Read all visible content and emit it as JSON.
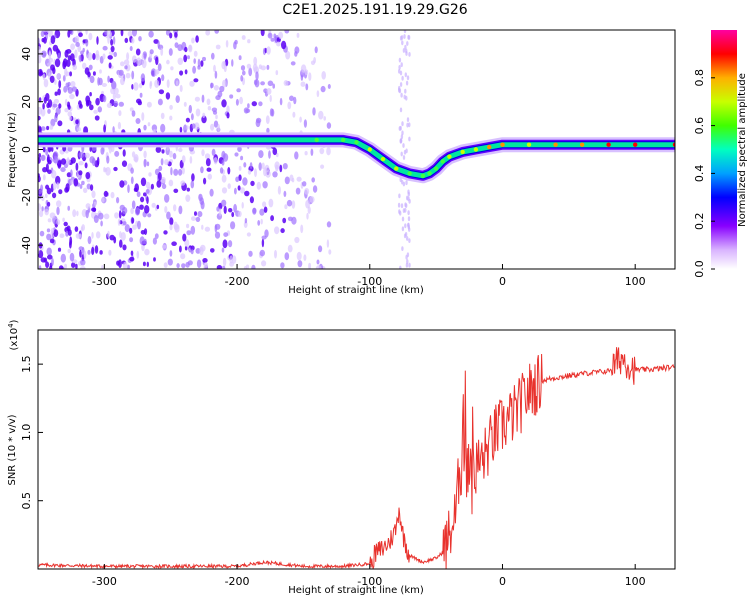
{
  "title": "C2E1.2025.191.19.29.G26",
  "colors": {
    "snr_line": "#e8322d",
    "ridge_low": "#5b00ff",
    "ridge_high": "#ff0000",
    "speckle": "#6a00ff"
  },
  "chart_data": [
    {
      "type": "heatmap",
      "xlabel": "Height of straight line (km)",
      "ylabel": "Frequency (Hz)",
      "xlim": [
        -350,
        130
      ],
      "ylim": [
        -50,
        50
      ],
      "xticks": [
        -300,
        -200,
        -100,
        0,
        100
      ],
      "yticks": [
        -40,
        -20,
        0,
        20,
        40
      ],
      "colorbar": {
        "label": "Normalized spectral amplitude",
        "range": [
          0,
          1
        ],
        "ticks": [
          "0.0",
          "0.2",
          "0.4",
          "0.6",
          "0.8"
        ],
        "tick_values": [
          0,
          0.2,
          0.4,
          0.6,
          0.8
        ]
      },
      "ridge": {
        "x": [
          -350,
          -300,
          -250,
          -210,
          -200,
          -160,
          -140,
          -120,
          -110,
          -100,
          -90,
          -80,
          -70,
          -60,
          -55,
          -50,
          -45,
          -40,
          -30,
          -20,
          -10,
          0,
          20,
          40,
          60,
          80,
          100,
          130
        ],
        "y": [
          4,
          4,
          4,
          4,
          4,
          4,
          4,
          4,
          3,
          0,
          -4,
          -8,
          -10,
          -11,
          -10,
          -8,
          -5,
          -3,
          -1,
          0,
          1,
          2,
          2,
          2,
          2,
          2,
          2,
          2
        ],
        "amplitude": [
          0.15,
          0.18,
          0.15,
          0.3,
          0.4,
          0.25,
          0.35,
          0.45,
          0.5,
          0.55,
          0.55,
          0.55,
          0.5,
          0.45,
          0.45,
          0.5,
          0.5,
          0.55,
          0.6,
          0.7,
          0.75,
          0.75,
          0.7,
          0.75,
          0.8,
          0.95,
          0.95,
          0.95
        ]
      },
      "noise_region_x": [
        -350,
        -130
      ]
    },
    {
      "type": "line",
      "xlabel": "Height of straight line (km)",
      "ylabel": "SNR (10 * v/v)",
      "y_multiplier": "(x10",
      "y_multiplier_exp": "4",
      "y_multiplier_close": ")",
      "xlim": [
        -350,
        130
      ],
      "ylim": [
        0,
        1.75
      ],
      "xticks": [
        -300,
        -200,
        -100,
        0,
        100
      ],
      "yticks": [
        0.5,
        1.0,
        1.5
      ],
      "ytick_labels": [
        "0.5",
        "1.0",
        "1.5"
      ],
      "series": [
        {
          "x": [
            -350,
            -300,
            -250,
            -200,
            -180,
            -150,
            -120,
            -100,
            -95,
            -90,
            -85,
            -80,
            -78,
            -75,
            -70,
            -60,
            -50,
            -45,
            -40,
            -35,
            -32,
            -30,
            -28,
            -25,
            -20,
            -15,
            -10,
            -5,
            0,
            10,
            20,
            30,
            40,
            60,
            80,
            85,
            90,
            95,
            100,
            110,
            130
          ],
          "y": [
            0.03,
            0.02,
            0.02,
            0.02,
            0.05,
            0.02,
            0.02,
            0.04,
            0.12,
            0.15,
            0.2,
            0.3,
            0.45,
            0.25,
            0.1,
            0.05,
            0.08,
            0.12,
            0.25,
            0.4,
            0.8,
            1.1,
            1.0,
            0.85,
            0.75,
            0.8,
            0.9,
            1.0,
            1.05,
            1.15,
            1.3,
            1.38,
            1.4,
            1.43,
            1.45,
            1.5,
            1.55,
            1.5,
            1.46,
            1.46,
            1.48
          ]
        }
      ]
    }
  ]
}
